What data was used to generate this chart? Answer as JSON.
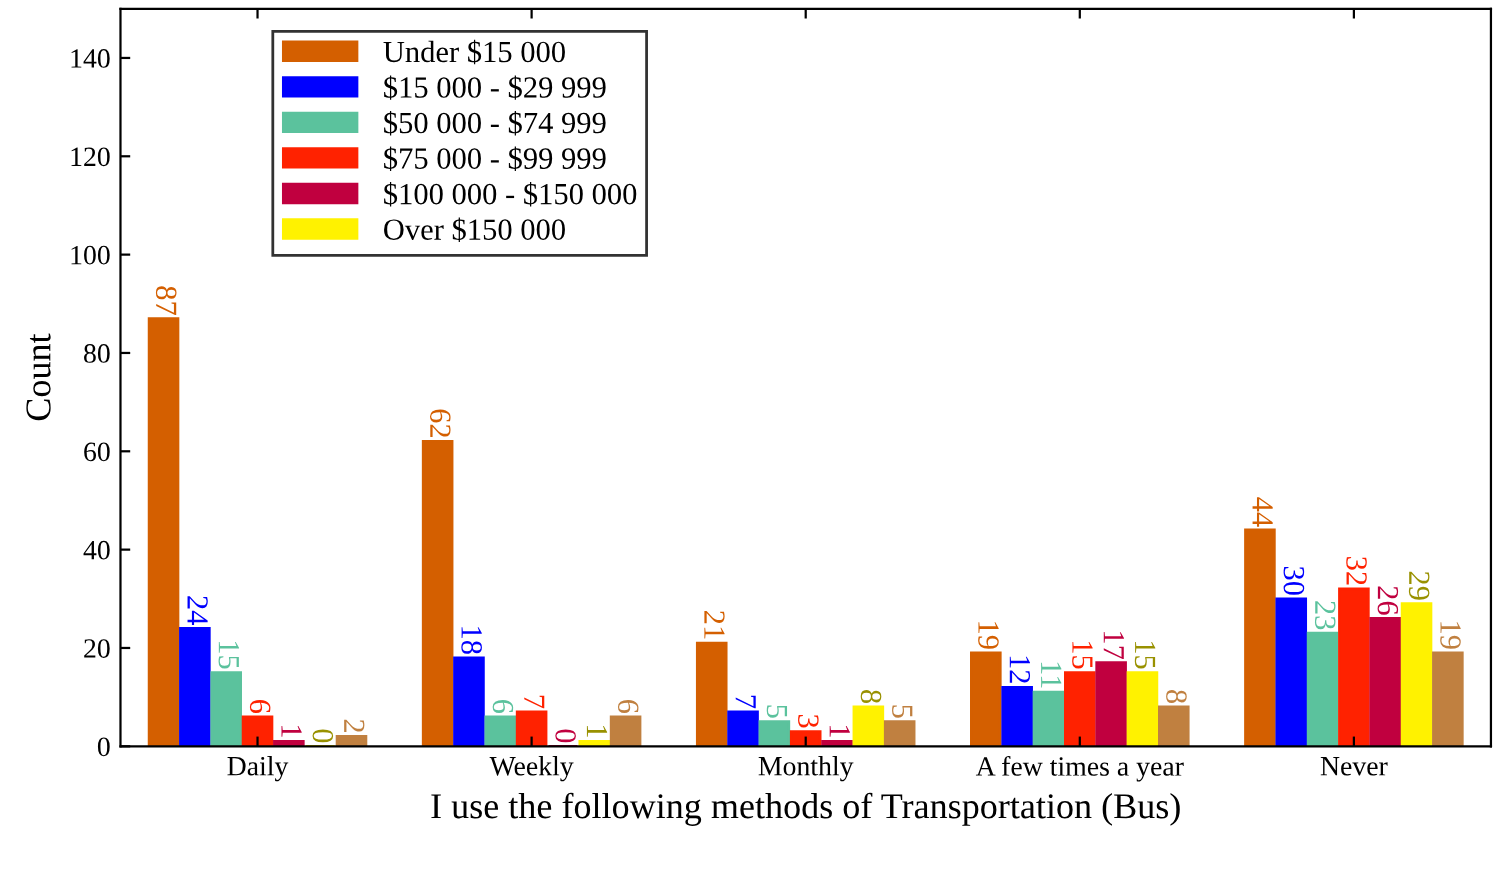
{
  "chart_data": {
    "type": "bar",
    "xlabel": "I use the following methods of Transportation (Bus)",
    "ylabel": "Count",
    "categories": [
      "Daily",
      "Weekly",
      "Monthly",
      "A few times a year",
      "Never"
    ],
    "series": [
      {
        "name": "Under $15 000",
        "color": "#d45f00",
        "values": [
          87,
          62,
          21,
          19,
          44
        ]
      },
      {
        "name": "$15 000 - $29 999",
        "color": "#0000ff",
        "values": [
          24,
          18,
          7,
          12,
          30
        ]
      },
      {
        "name": "$50 000 - $74 999",
        "color": "#5bc29d",
        "values": [
          15,
          6,
          5,
          11,
          23
        ]
      },
      {
        "name": "$75 000 - $99 999",
        "color": "#ff2200",
        "values": [
          6,
          7,
          3,
          15,
          32
        ]
      },
      {
        "name": "$100 000 - $150 000",
        "color": "#c0003f",
        "values": [
          1,
          0,
          1,
          17,
          26
        ]
      },
      {
        "name": "Over $150 000",
        "color": "#fff200",
        "values": [
          0,
          1,
          8,
          15,
          29
        ]
      },
      {
        "color": "#c08040",
        "values": [
          2,
          6,
          5,
          8,
          19
        ]
      }
    ],
    "ylim": [
      0,
      150
    ],
    "yticks": [
      0,
      20,
      40,
      60,
      80,
      100,
      120,
      140
    ],
    "data_labels": true,
    "grid": false,
    "legend": "top left"
  }
}
